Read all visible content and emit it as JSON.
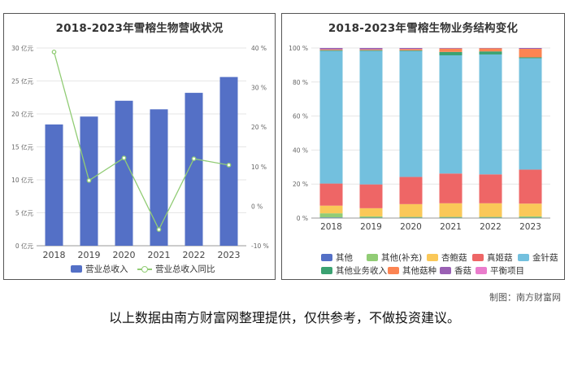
{
  "left_chart": {
    "title": "2018-2023年雪榕生物营收状况",
    "legend": {
      "bar_label": "营业总收入",
      "line_label": "营业总收入同比"
    },
    "left_axis_ticks": [
      "0 亿元",
      "5 亿元",
      "10 亿元",
      "15 亿元",
      "20 亿元",
      "25 亿元",
      "30 亿元"
    ],
    "right_axis_ticks": [
      "-10 %",
      "0 %",
      "10 %",
      "20 %",
      "30 %",
      "40 %"
    ],
    "colors": {
      "bar": "#5470c6",
      "line": "#91cc75"
    }
  },
  "right_chart": {
    "title": "2018-2023年雪榕生物业务结构变化",
    "y_ticks": [
      "0 %",
      "20 %",
      "40 %",
      "60 %",
      "80 %",
      "100 %"
    ],
    "colors": {
      "其他": "#5470c6",
      "其他(补充)": "#91cc75",
      "杏鲍菇": "#fac858",
      "真姬菇": "#ee6666",
      "金针菇": "#73c0de",
      "其他业务收入": "#3ba272",
      "其他菇种": "#fc8452",
      "香菇": "#9a60b4",
      "平衡项目": "#ea7ccc"
    }
  },
  "chart_data": [
    {
      "type": "bar",
      "title": "2018-2023年雪榕生物营收状况",
      "categories": [
        "2018",
        "2019",
        "2020",
        "2021",
        "2022",
        "2023"
      ],
      "series": [
        {
          "name": "营业总收入",
          "type": "bar",
          "axis": "left",
          "values": [
            18.4,
            19.6,
            22.0,
            20.7,
            23.2,
            25.6
          ]
        },
        {
          "name": "营业总收入同比",
          "type": "line",
          "axis": "right",
          "values": [
            39.0,
            6.5,
            12.2,
            -5.9,
            12.0,
            10.4
          ]
        }
      ],
      "ylim": [
        0,
        30
      ],
      "y2lim": [
        -10,
        40
      ],
      "legend_position": "bottom",
      "grid": true
    },
    {
      "type": "bar",
      "stacked": true,
      "title": "2018-2023年雪榕生物业务结构变化",
      "categories": [
        "2018",
        "2019",
        "2020",
        "2021",
        "2022",
        "2023"
      ],
      "ylim": [
        0,
        100
      ],
      "legend_position": "bottom",
      "grid": true,
      "series": [
        {
          "name": "其他",
          "values": [
            0.3,
            0.2,
            0.2,
            0.2,
            0.2,
            0.2
          ]
        },
        {
          "name": "其他(补充)",
          "values": [
            2.5,
            0.8,
            0.5,
            0.5,
            0.5,
            0.8
          ]
        },
        {
          "name": "杏鲍菇",
          "values": [
            4.5,
            4.8,
            7.5,
            8.0,
            8.0,
            7.5
          ]
        },
        {
          "name": "真姬菇",
          "values": [
            13.0,
            14.0,
            16.0,
            17.5,
            17.0,
            20.0
          ]
        },
        {
          "name": "金针菇",
          "values": [
            78.0,
            78.5,
            74.0,
            69.5,
            70.5,
            65.5
          ]
        },
        {
          "name": "其他业务收入",
          "values": [
            0.4,
            0.4,
            0.4,
            2.0,
            1.8,
            0.5
          ]
        },
        {
          "name": "其他菇种",
          "values": [
            0.5,
            0.5,
            0.8,
            2.0,
            1.8,
            5.0
          ]
        },
        {
          "name": "香菇",
          "values": [
            0.8,
            0.8,
            0.6,
            0.3,
            0.2,
            0.5
          ]
        },
        {
          "name": "平衡项目",
          "values": [
            0,
            0,
            0,
            0,
            0,
            0
          ]
        }
      ]
    }
  ],
  "footer": {
    "credit": "制图：南方财富网",
    "disclaimer": "以上数据由南方财富网整理提供，仅供参考，不做投资建议。"
  }
}
